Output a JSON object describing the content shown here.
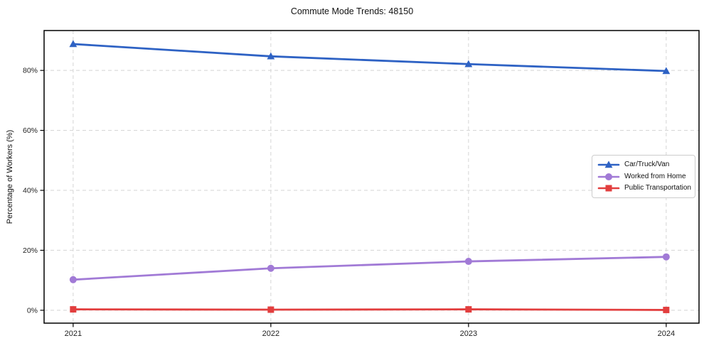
{
  "chart_data": {
    "type": "line",
    "title": "Commute Mode Trends: 48150",
    "xlabel": "",
    "ylabel": "Percentage of Workers (%)",
    "categories": [
      2021,
      2022,
      2023,
      2024
    ],
    "x_tick_labels": [
      "2021",
      "2022",
      "2023",
      "2024"
    ],
    "series": [
      {
        "name": "Car/Truck/Van",
        "marker": "triangle",
        "color": "#2e62c4",
        "values": [
          88.8,
          84.7,
          82.1,
          79.8
        ]
      },
      {
        "name": "Worked from Home",
        "marker": "circle",
        "color": "#a17ad6",
        "values": [
          10.2,
          14.0,
          16.3,
          17.8
        ]
      },
      {
        "name": "Public Transportation",
        "marker": "square",
        "color": "#e23e3e",
        "values": [
          0.3,
          0.2,
          0.3,
          0.1
        ]
      }
    ],
    "y_tick_values": [
      0,
      20,
      40,
      60,
      80
    ],
    "y_tick_labels": [
      "0%",
      "20%",
      "40%",
      "60%",
      "80%"
    ],
    "xlim": [
      2020.853,
      2024.166
    ],
    "ylim": [
      -4.3,
      93.3
    ],
    "grid": true,
    "grid_style": "dashed",
    "legend_position": "center right",
    "colors": {
      "grid": "#d4d4d4",
      "spine": "#000000",
      "text": "#222222",
      "background": "#ffffff"
    }
  }
}
